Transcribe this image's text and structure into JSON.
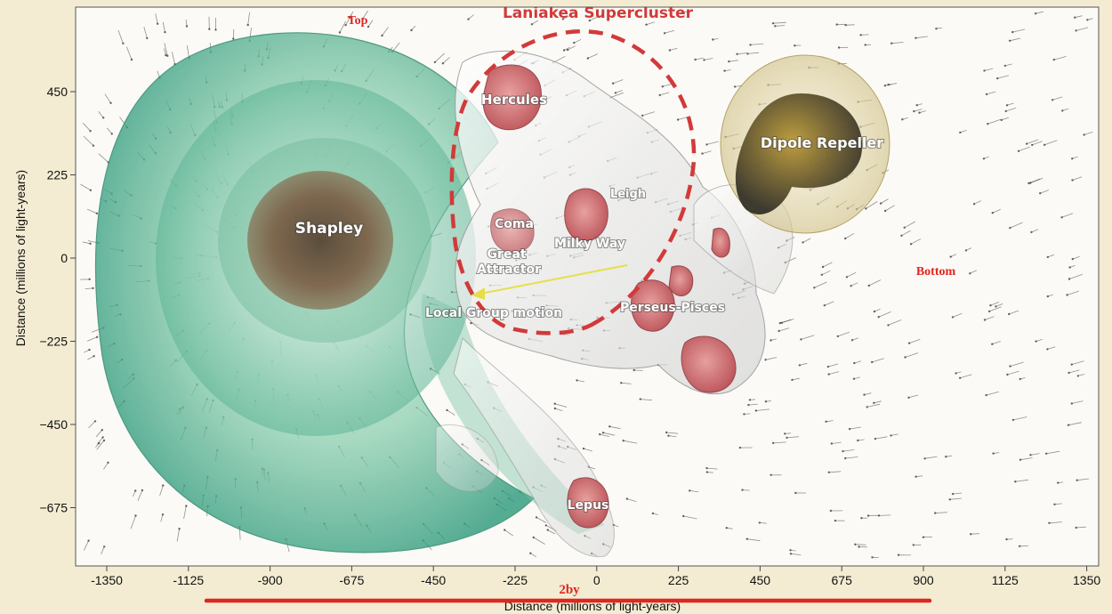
{
  "figure": {
    "title": "Laniakea Supercluster",
    "xlabel": "Distance (millions of light-years)",
    "ylabel": "Distance (millions of light-years)",
    "x_ticks": [
      "-1350",
      "-1125",
      "-900",
      "-675",
      "-450",
      "-225",
      "0",
      "225",
      "450",
      "675",
      "900",
      "1125",
      "1350"
    ],
    "y_ticks": [
      "450",
      "225",
      "0",
      "−225",
      "−450",
      "−675"
    ],
    "y_top_clipped": "675",
    "regions": {
      "shapley": "Shapley",
      "hercules": "Hercules",
      "dipole_repeller": "Dipole Repeller",
      "coma": "Coma",
      "milky_way": "Milky Way",
      "great_attractor": "Great\nAttractor",
      "local_group_motion": "Local Group motion",
      "perseus_pisces": "Perseus-Pisces",
      "leigh": "Leigh",
      "lepus": "Lepus"
    }
  },
  "annotations": {
    "top": "Top",
    "bottom": "Bottom",
    "span": "2by"
  },
  "colors": {
    "shapley_green": "#3fa889",
    "cluster_red": "#c8545a",
    "dipole_gold": "#c7a93a",
    "laniakea_dash": "#d23a3a",
    "annotation_red": "#e0261f",
    "flow_arrow": "#e5e04a"
  }
}
